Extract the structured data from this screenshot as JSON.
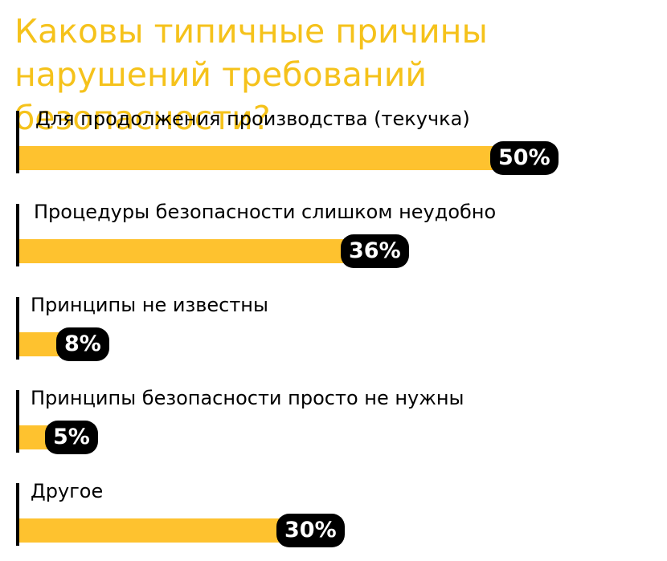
{
  "title": "Каковы типичные причины нарушений требований безопасности?",
  "colors": {
    "title": "#f5c21b",
    "bar": "#fec22f",
    "pill": "#000000",
    "pill_text": "#ffffff"
  },
  "chart_data": {
    "type": "bar",
    "orientation": "horizontal",
    "title": "Каковы типичные причины нарушений требований безопасности?",
    "categories": [
      "Для продолжения производства (текучка)",
      "Процедуры безопасности слишком неудобно",
      "Принципы не известны",
      "Принципы безопасности просто не нужны",
      "Другое"
    ],
    "values": [
      50,
      36,
      8,
      5,
      30
    ],
    "value_labels": [
      "50%",
      "36%",
      "8%",
      "5%",
      "30%"
    ],
    "unit": "%",
    "xlim": [
      0,
      56
    ],
    "grid": false,
    "legend": "none"
  }
}
